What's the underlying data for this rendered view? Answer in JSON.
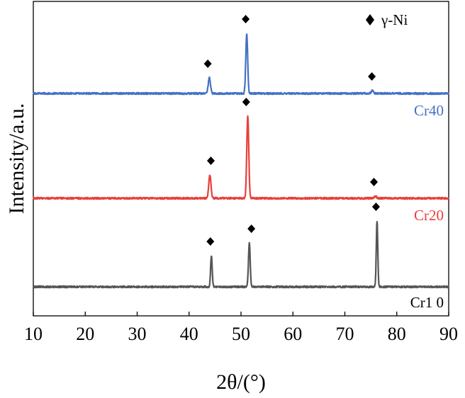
{
  "chart_data": {
    "type": "line",
    "title": "",
    "xlabel": "2θ/(°)",
    "ylabel": "Intensity/a.u.",
    "xlim": [
      10,
      90
    ],
    "xticks": [
      10,
      20,
      30,
      40,
      50,
      60,
      70,
      80,
      90
    ],
    "y_ticks_shown": false,
    "grid": false,
    "legend": {
      "placement": "top-right",
      "marker": "diamond",
      "label": "γ-Ni"
    },
    "series": [
      {
        "name": "Cr40",
        "color": "#4472c4",
        "baseline": 0.03,
        "peaks": [
          {
            "x": 43.9,
            "height": 0.22,
            "width": 0.45
          },
          {
            "x": 51.1,
            "height": 0.85,
            "width": 0.38
          },
          {
            "x": 75.3,
            "height": 0.04,
            "width": 0.4
          }
        ],
        "markers_x": [
          43.6,
          50.9,
          75.2
        ]
      },
      {
        "name": "Cr20",
        "color": "#e8403a",
        "baseline": 0.03,
        "peaks": [
          {
            "x": 44.0,
            "height": 0.33,
            "width": 0.45
          },
          {
            "x": 51.3,
            "height": 1.16,
            "width": 0.4
          },
          {
            "x": 75.9,
            "height": 0.03,
            "width": 0.4
          }
        ],
        "markers_x": [
          44.2,
          51.0,
          75.6
        ]
      },
      {
        "name": "Cr1 0",
        "color": "#555555",
        "baseline": 0.03,
        "peaks": [
          {
            "x": 44.3,
            "height": 0.44,
            "width": 0.32
          },
          {
            "x": 51.6,
            "height": 0.62,
            "width": 0.35
          },
          {
            "x": 76.2,
            "height": 0.93,
            "width": 0.3
          }
        ],
        "markers_x": [
          44.1,
          52.0,
          76.0
        ]
      }
    ]
  }
}
